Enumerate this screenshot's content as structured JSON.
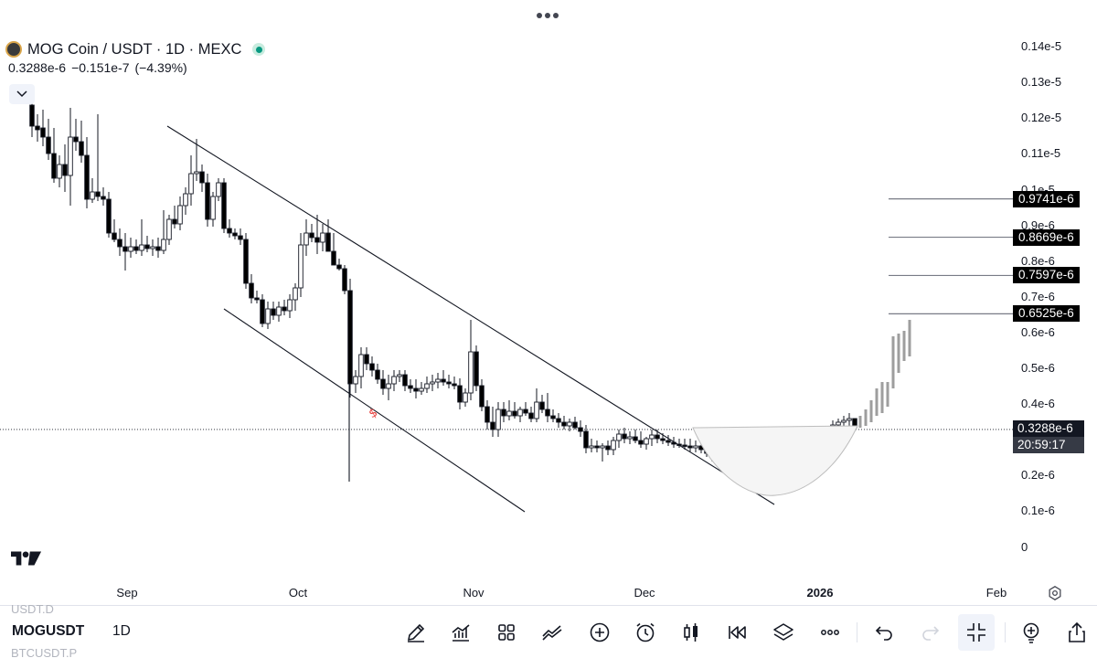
{
  "legend": {
    "title": "MOG Coin / USDT · 1D · MEXC",
    "close": "0.3288e-6",
    "change": "−0.151e-7",
    "change_pct": "(−4.39%)"
  },
  "price_axis": {
    "labels": [
      "0.14e-5",
      "0.13e-5",
      "0.12e-5",
      "0.11e-5",
      "0.1e-5",
      "0.9e-6",
      "0.8e-6",
      "0.7e-6",
      "0.6e-6",
      "0.5e-6",
      "0.4e-6",
      "0.2e-6",
      "0.1e-6",
      "0"
    ],
    "label_values": [
      1.4,
      1.3,
      1.2,
      1.1,
      1.0,
      0.9,
      0.8,
      0.7,
      0.6,
      0.5,
      0.4,
      0.2,
      0.1,
      0
    ]
  },
  "levels": [
    {
      "label": "0.9741e-6",
      "value": 0.9741
    },
    {
      "label": "0.8669e-6",
      "value": 0.8669
    },
    {
      "label": "0.7597e-6",
      "value": 0.7597
    },
    {
      "label": "0.6525e-6",
      "value": 0.6525
    }
  ],
  "last_price": {
    "label": "0.3288e-6",
    "value": 0.3288,
    "countdown": "20:59:17"
  },
  "time_axis": {
    "labels": [
      {
        "text": "Sep",
        "bold": false
      },
      {
        "text": "Oct",
        "bold": false
      },
      {
        "text": "Nov",
        "bold": false
      },
      {
        "text": "Dec",
        "bold": false
      },
      {
        "text": "2026",
        "bold": true
      },
      {
        "text": "Feb",
        "bold": false
      }
    ]
  },
  "watchlist": {
    "prev": "USDT.D",
    "next": "BTCUSDT.P"
  },
  "bottom": {
    "symbol": "MOGUSDT",
    "interval": "1D"
  },
  "colors": {
    "up": "#ffffff",
    "down": "#000000",
    "wick": "#131722",
    "projection": "#9e9e9e",
    "accent": "#089981"
  },
  "icons": [
    "pencil-icon",
    "indicators-icon",
    "apps-grid-icon",
    "drawing-tools-icon",
    "add-circle-icon",
    "alarm-icon",
    "candles-icon",
    "replay-icon",
    "layers-icon",
    "more-icon",
    "undo-icon",
    "redo-icon",
    "minimize-icon",
    "idea-bulb-icon",
    "share-icon"
  ]
}
